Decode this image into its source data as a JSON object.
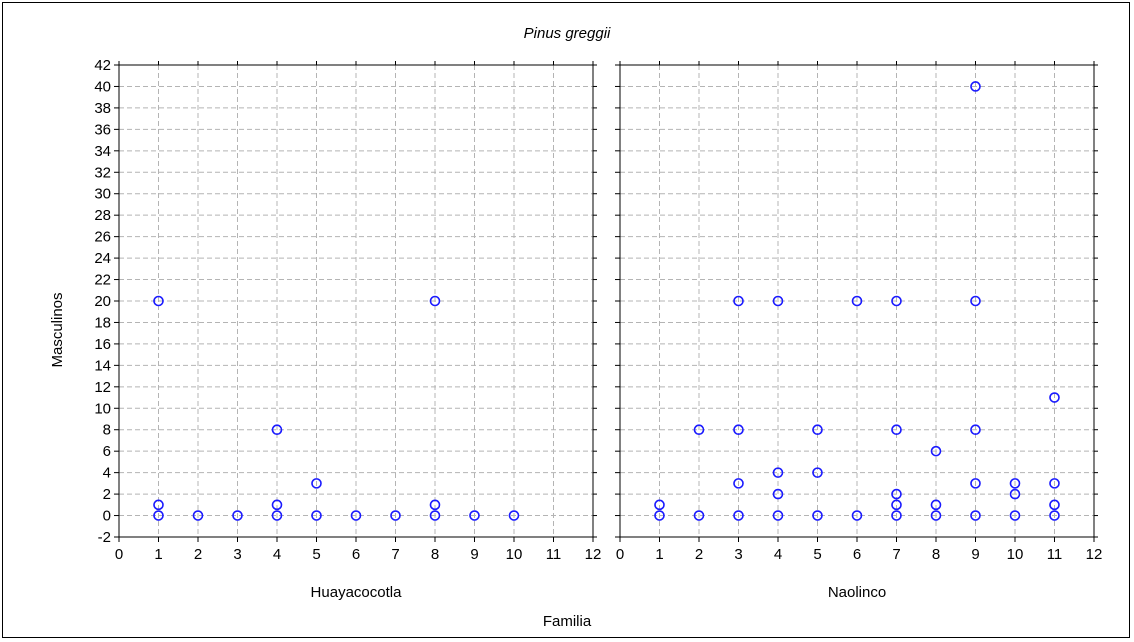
{
  "chart_data": {
    "type": "scatter",
    "title": "Pinus greggii",
    "xlabel": "Familia",
    "ylabel": "Masculinos",
    "xlim": [
      0,
      12
    ],
    "ylim": [
      -2,
      42
    ],
    "x_ticks": [
      0,
      1,
      2,
      3,
      4,
      5,
      6,
      7,
      8,
      9,
      10,
      11,
      12
    ],
    "y_ticks": [
      -2,
      0,
      2,
      4,
      6,
      8,
      10,
      12,
      14,
      16,
      18,
      20,
      22,
      24,
      26,
      28,
      30,
      32,
      34,
      36,
      38,
      40,
      42
    ],
    "grid": true,
    "marker_color": "#1a1aff",
    "panels": [
      {
        "name": "Huayacocotla",
        "points": [
          [
            1,
            0
          ],
          [
            1,
            1
          ],
          [
            1,
            20
          ],
          [
            2,
            0
          ],
          [
            3,
            0
          ],
          [
            4,
            0
          ],
          [
            4,
            1
          ],
          [
            4,
            8
          ],
          [
            5,
            0
          ],
          [
            5,
            3
          ],
          [
            6,
            0
          ],
          [
            7,
            0
          ],
          [
            8,
            0
          ],
          [
            8,
            1
          ],
          [
            8,
            20
          ],
          [
            9,
            0
          ],
          [
            10,
            0
          ]
        ]
      },
      {
        "name": "Naolinco",
        "points": [
          [
            1,
            0
          ],
          [
            1,
            1
          ],
          [
            2,
            0
          ],
          [
            2,
            8
          ],
          [
            3,
            0
          ],
          [
            3,
            3
          ],
          [
            3,
            8
          ],
          [
            3,
            20
          ],
          [
            4,
            0
          ],
          [
            4,
            2
          ],
          [
            4,
            4
          ],
          [
            4,
            20
          ],
          [
            5,
            0
          ],
          [
            5,
            4
          ],
          [
            5,
            8
          ],
          [
            6,
            0
          ],
          [
            6,
            20
          ],
          [
            7,
            0
          ],
          [
            7,
            1
          ],
          [
            7,
            2
          ],
          [
            7,
            8
          ],
          [
            7,
            20
          ],
          [
            8,
            0
          ],
          [
            8,
            1
          ],
          [
            8,
            6
          ],
          [
            9,
            0
          ],
          [
            9,
            3
          ],
          [
            9,
            8
          ],
          [
            9,
            20
          ],
          [
            9,
            40
          ],
          [
            10,
            0
          ],
          [
            10,
            2
          ],
          [
            10,
            3
          ],
          [
            11,
            0
          ],
          [
            11,
            1
          ],
          [
            11,
            3
          ],
          [
            11,
            11
          ]
        ]
      }
    ]
  }
}
